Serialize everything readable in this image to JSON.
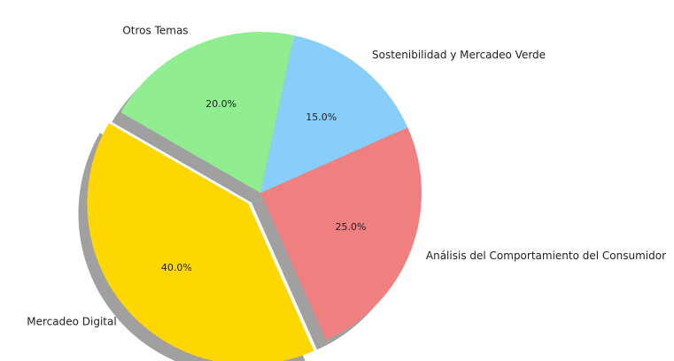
{
  "chart_data": {
    "type": "pie",
    "title": "",
    "start_angle_deg": 150,
    "direction": "counterclockwise",
    "shadow": true,
    "slices": [
      {
        "label": "Mercadeo Digital",
        "value": 40.0,
        "pct_label": "40.0%",
        "color": "#FFD700",
        "explode": 0.1
      },
      {
        "label": "Análisis del Comportamiento del Consumidor",
        "value": 25.0,
        "pct_label": "25.0%",
        "color": "#F08080",
        "explode": 0
      },
      {
        "label": "Sostenibilidad y Mercadeo Verde",
        "value": 15.0,
        "pct_label": "15.0%",
        "color": "#87CEFA",
        "explode": 0
      },
      {
        "label": "Otros Temas",
        "value": 20.0,
        "pct_label": "20.0%",
        "color": "#90EE90",
        "explode": 0
      }
    ]
  }
}
